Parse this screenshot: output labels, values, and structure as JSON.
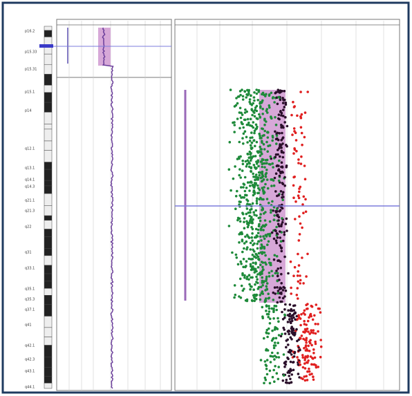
{
  "ideogram": {
    "bands": [
      "p16.2",
      "p15.33",
      "p15.31",
      "p15.1",
      "p14",
      "q12.1",
      "q13.1",
      "q14.1",
      "q14.3",
      "q21.1",
      "q21.3",
      "q22",
      "q31",
      "q33.1",
      "q35.1",
      "q35.3",
      "q37.1",
      "q41",
      "q42.1",
      "q42.3",
      "q43.1",
      "q44.1"
    ]
  }
}
